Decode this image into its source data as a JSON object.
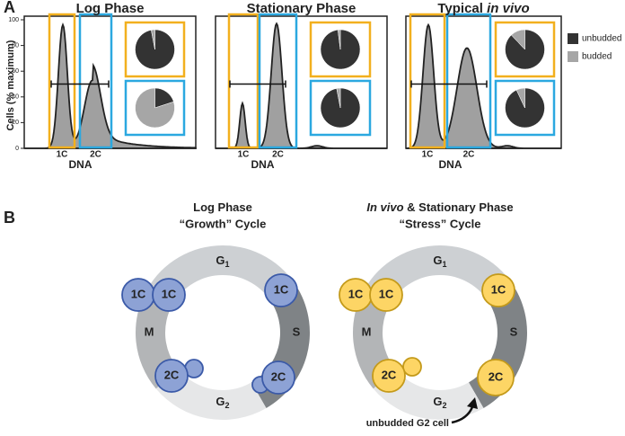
{
  "panel_a": {
    "label": "A",
    "y_axis_label": "Cells (% maximum)",
    "yticks": [
      0,
      20,
      40,
      60,
      80,
      100
    ],
    "ylim": [
      0,
      100
    ],
    "plots": [
      {
        "title": "Log Phase",
        "x_labels": [
          "1C",
          "2C"
        ],
        "x_axis_label": "DNA",
        "pies": [
          {
            "values": [
              97,
              3
            ]
          },
          {
            "values": [
              20,
              80
            ]
          }
        ]
      },
      {
        "title": "Stationary Phase",
        "x_labels": [
          "1C",
          "2C"
        ],
        "x_axis_label": "DNA",
        "pies": [
          {
            "values": [
              98,
              2
            ]
          },
          {
            "values": [
              97,
              3
            ]
          }
        ]
      },
      {
        "title": "Typical ",
        "title_italic": "in vivo",
        "x_labels": [
          "1C",
          "2C"
        ],
        "x_axis_label": "DNA",
        "pies": [
          {
            "values": [
              88,
              12
            ]
          },
          {
            "values": [
              93,
              7
            ]
          }
        ]
      }
    ],
    "legend": [
      {
        "name": "unbudded",
        "color": "#333333"
      },
      {
        "name": "budded",
        "color": "#a6a6a6"
      }
    ]
  },
  "panel_b": {
    "label": "B",
    "cycles": [
      {
        "title_line1": "Log Phase",
        "title_line2": "“Growth” Cycle",
        "cells": [
          "1C",
          "1C",
          "1C",
          "2C",
          "2C"
        ]
      },
      {
        "title_italic": "In vivo",
        "title_line1": " & Stationary Phase",
        "title_line2": "“Stress” Cycle",
        "cells": [
          "1C",
          "1C",
          "1C",
          "2C",
          "2C"
        ]
      }
    ],
    "phases": {
      "g1": "G",
      "g1_sub": "1",
      "s": "S",
      "g2": "G",
      "g2_sub": "2",
      "m": "M"
    },
    "annotation": "unbudded G2 cell"
  }
}
